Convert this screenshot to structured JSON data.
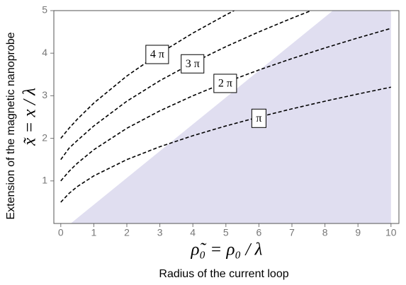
{
  "chart_data": {
    "type": "line",
    "x_label": "ρ̃₀ = ρ₀ / λ",
    "x_caption": "Radius of the current loop",
    "y_label": "x̃ = x / λ",
    "y_caption": "Extension of the magnetic nanoprobe",
    "xlim": [
      -0.21,
      10.24
    ],
    "ylim": [
      0,
      5
    ],
    "xticks": [
      0,
      1,
      2,
      3,
      4,
      5,
      6,
      7,
      8,
      9,
      10
    ],
    "yticks": [
      1,
      2,
      3,
      4,
      5
    ],
    "shaded_region": {
      "color": "#e0def0",
      "x": [
        0.3,
        8.24,
        10,
        10
      ],
      "y": [
        0,
        5,
        5,
        0
      ]
    },
    "series": [
      {
        "name": "π",
        "color": "#000000",
        "label_at": [
          6.0,
          2.47
        ],
        "x": [
          0,
          0.25,
          0.5,
          1,
          2,
          3,
          4,
          5,
          6,
          7,
          8,
          9,
          10
        ],
        "values": [
          0.5,
          0.707,
          0.866,
          1.118,
          1.5,
          1.803,
          2.062,
          2.291,
          2.5,
          2.693,
          2.872,
          3.041,
          3.202
        ]
      },
      {
        "name": "2 π",
        "color": "#000000",
        "label_at": [
          4.98,
          3.29
        ],
        "x": [
          0,
          0.25,
          0.5,
          1,
          2,
          3,
          4,
          5,
          6,
          7,
          8,
          9,
          10
        ],
        "values": [
          1,
          1.225,
          1.414,
          1.732,
          2.236,
          2.646,
          3,
          3.317,
          3.606,
          3.873,
          4.123,
          4.359,
          4.583
        ]
      },
      {
        "name": "3 π",
        "color": "#000000",
        "label_at": [
          3.99,
          3.75
        ],
        "x": [
          0,
          0.25,
          0.5,
          1,
          2,
          3,
          4,
          5,
          6,
          7,
          7.583
        ],
        "values": [
          1.5,
          1.768,
          1.949,
          2.291,
          2.872,
          3.354,
          3.775,
          4.153,
          4.5,
          4.822,
          5
        ]
      },
      {
        "name": "4 π",
        "color": "#000000",
        "label_at": [
          2.92,
          3.97
        ],
        "x": [
          0,
          0.25,
          0.5,
          1,
          2,
          3,
          4,
          5,
          5.25
        ],
        "values": [
          2,
          2.236,
          2.449,
          2.828,
          3.464,
          4,
          4.472,
          4.899,
          5
        ]
      }
    ]
  }
}
